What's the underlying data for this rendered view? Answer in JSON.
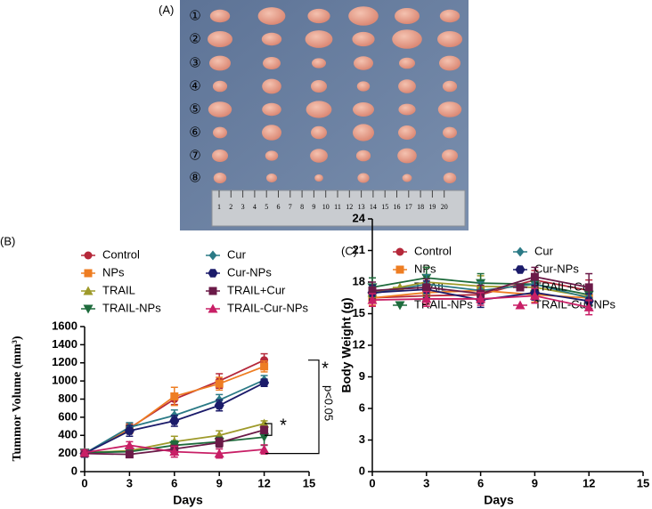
{
  "panel_a": {
    "label": "(A)",
    "row_labels": [
      "①",
      "②",
      "③",
      "④",
      "⑤",
      "⑥",
      "⑦",
      "⑧"
    ],
    "ruler_labels": [
      1,
      2,
      3,
      4,
      5,
      6,
      7,
      8,
      9,
      10,
      11,
      12,
      13,
      14,
      15,
      16,
      17,
      18,
      19,
      20
    ]
  },
  "chart_data": [
    {
      "type": "line",
      "label": "(B)",
      "xlabel": "Days",
      "ylabel": "Tummor Volume (mm³)",
      "x": [
        0,
        3,
        6,
        9,
        12
      ],
      "xlim": [
        0,
        15
      ],
      "xticks": [
        0,
        3,
        6,
        9,
        12,
        15
      ],
      "ylim": [
        0,
        1600
      ],
      "yticks": [
        0,
        200,
        400,
        600,
        800,
        1000,
        1200,
        1400,
        1600
      ],
      "annotations": [
        "*",
        "p<0.05",
        "*"
      ],
      "series": [
        {
          "name": "Control",
          "color": "#b5283a",
          "marker": "circle",
          "values": [
            200,
            480,
            800,
            1000,
            1230
          ],
          "errors": [
            40,
            50,
            60,
            80,
            70
          ]
        },
        {
          "name": "NPs",
          "color": "#ee7d22",
          "marker": "square",
          "values": [
            200,
            470,
            830,
            970,
            1160
          ],
          "errors": [
            40,
            50,
            100,
            70,
            60
          ]
        },
        {
          "name": "TRAIL",
          "color": "#9e9a2a",
          "marker": "triangle-up",
          "values": [
            210,
            230,
            330,
            400,
            530
          ],
          "errors": [
            30,
            40,
            60,
            50,
            30
          ]
        },
        {
          "name": "TRAIL-NPs",
          "color": "#1e6b3c",
          "marker": "triangle-down",
          "values": [
            210,
            220,
            290,
            330,
            380
          ],
          "errors": [
            30,
            30,
            50,
            50,
            90
          ]
        },
        {
          "name": "Cur",
          "color": "#2b7a86",
          "marker": "diamond",
          "values": [
            200,
            490,
            620,
            790,
            1010
          ],
          "errors": [
            40,
            50,
            60,
            60,
            50
          ]
        },
        {
          "name": "Cur-NPs",
          "color": "#1b1b6a",
          "marker": "hexagon",
          "values": [
            200,
            450,
            560,
            730,
            980
          ],
          "errors": [
            40,
            60,
            60,
            60,
            40
          ]
        },
        {
          "name": "TRAIL+Cur",
          "color": "#6b1a48",
          "marker": "square",
          "values": [
            200,
            190,
            250,
            320,
            460
          ],
          "errors": [
            30,
            30,
            40,
            50,
            40
          ]
        },
        {
          "name": "TRAIL-Cur-NPs",
          "color": "#c81f66",
          "marker": "triangle-up",
          "values": [
            210,
            290,
            220,
            200,
            245
          ],
          "errors": [
            30,
            40,
            60,
            50,
            50
          ]
        }
      ]
    },
    {
      "type": "line",
      "label": "(C)",
      "xlabel": "Days",
      "ylabel": "Body Weight (g)",
      "x": [
        0,
        3,
        6,
        9,
        12
      ],
      "xlim": [
        0,
        15
      ],
      "xticks": [
        0,
        3,
        6,
        9,
        12,
        15
      ],
      "ylim": [
        0,
        24
      ],
      "yticks": [
        0,
        3,
        6,
        9,
        12,
        15,
        18,
        21,
        24
      ],
      "series": [
        {
          "name": "Control",
          "color": "#b5283a",
          "marker": "circle",
          "values": [
            16.5,
            16.7,
            16.8,
            18.2,
            17.2
          ],
          "errors": [
            0.8,
            0.8,
            0.8,
            0.9,
            1.0
          ]
        },
        {
          "name": "NPs",
          "color": "#ee7d22",
          "marker": "square",
          "values": [
            16.5,
            17.0,
            17.2,
            16.8,
            16.5
          ],
          "errors": [
            0.7,
            0.8,
            0.8,
            0.7,
            0.8
          ]
        },
        {
          "name": "TRAIL",
          "color": "#9e9a2a",
          "marker": "triangle-up",
          "values": [
            17.0,
            18.0,
            17.6,
            17.5,
            16.6
          ],
          "errors": [
            0.8,
            1.4,
            1.0,
            0.9,
            0.9
          ]
        },
        {
          "name": "TRAIL-NPs",
          "color": "#1e6b3c",
          "marker": "triangle-down",
          "values": [
            17.5,
            18.4,
            17.9,
            17.8,
            16.8
          ],
          "errors": [
            0.9,
            1.0,
            0.9,
            0.9,
            0.8
          ]
        },
        {
          "name": "Cur",
          "color": "#2b7a86",
          "marker": "diamond",
          "values": [
            16.9,
            17.8,
            17.2,
            17.8,
            16.5
          ],
          "errors": [
            0.8,
            0.9,
            0.8,
            0.8,
            0.8
          ]
        },
        {
          "name": "Cur-NPs",
          "color": "#1b1b6a",
          "marker": "hexagon",
          "values": [
            17.0,
            17.3,
            16.3,
            17.0,
            16.2
          ],
          "errors": [
            0.7,
            0.8,
            0.7,
            0.7,
            0.7
          ]
        },
        {
          "name": "TRAIL+Cur",
          "color": "#6b1a48",
          "marker": "square",
          "values": [
            17.2,
            17.5,
            16.9,
            18.5,
            17.5
          ],
          "errors": [
            0.8,
            0.8,
            0.8,
            0.9,
            1.3
          ]
        },
        {
          "name": "TRAIL-Cur-NPs",
          "color": "#c81f66",
          "marker": "triangle-up",
          "values": [
            16.3,
            16.4,
            16.4,
            16.7,
            15.6
          ],
          "errors": [
            0.6,
            0.7,
            0.6,
            0.7,
            0.7
          ]
        }
      ]
    }
  ]
}
